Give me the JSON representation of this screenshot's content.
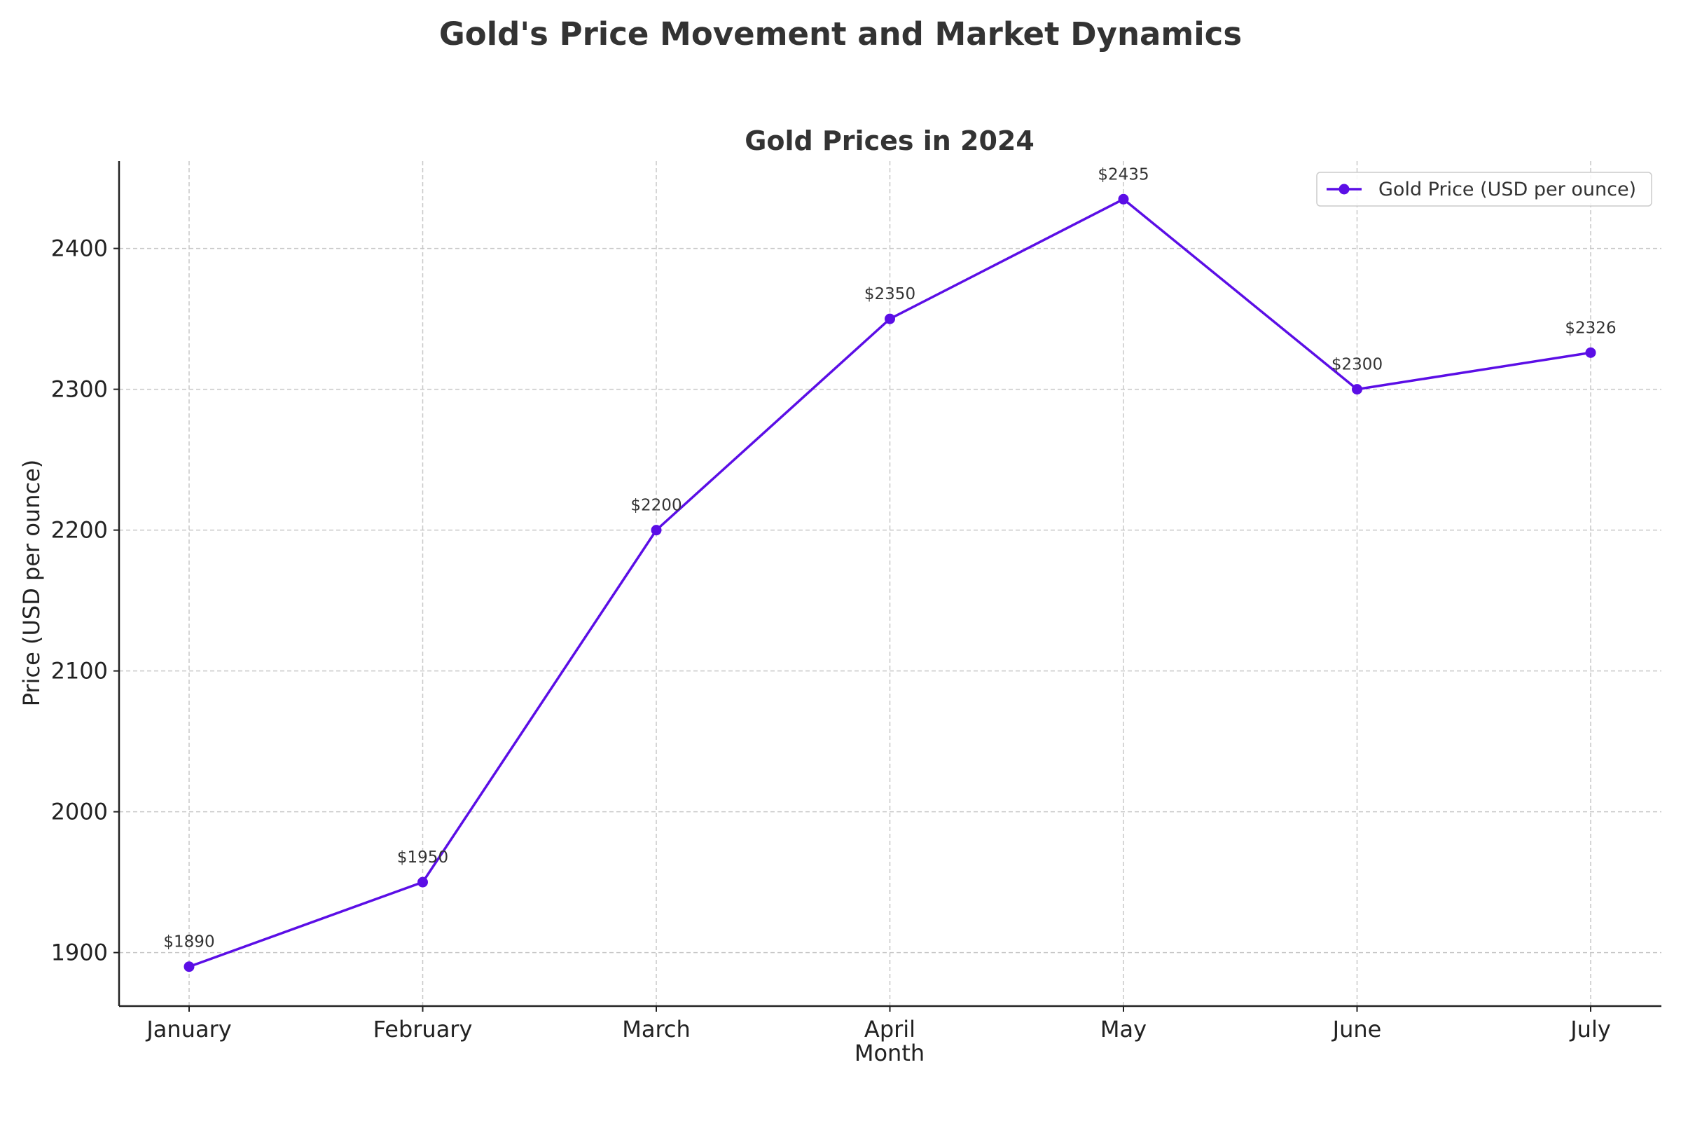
{
  "figure": {
    "suptitle": "Gold's Price Movement and Market Dynamics"
  },
  "chart_data": {
    "type": "line",
    "title": "Gold Prices in 2024",
    "xlabel": "Month",
    "ylabel": "Price (USD per ounce)",
    "categories": [
      "January",
      "February",
      "March",
      "April",
      "May",
      "June",
      "July"
    ],
    "series": [
      {
        "name": "Gold Price (USD per ounce)",
        "values": [
          1890,
          1950,
          2200,
          2350,
          2435,
          2300,
          2326
        ],
        "data_labels": [
          "$1890",
          "$1950",
          "$2200",
          "$2350",
          "$2435",
          "$2300",
          "$2326"
        ],
        "color": "#5b0ee6",
        "marker": "circle"
      }
    ],
    "ylim": [
      1862,
      2462
    ],
    "yticks": [
      1900,
      2000,
      2100,
      2200,
      2300,
      2400
    ],
    "grid": true,
    "legend_position": "top-right"
  }
}
